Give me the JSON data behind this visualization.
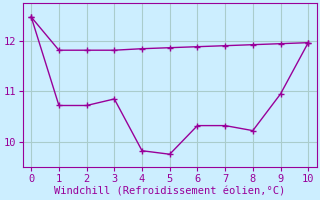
{
  "xlabel": "Windchill (Refroidissement éolien,°C)",
  "x": [
    0,
    1,
    2,
    3,
    4,
    5,
    6,
    7,
    8,
    9,
    10
  ],
  "line1_y": [
    12.48,
    11.82,
    11.82,
    11.82,
    11.85,
    11.87,
    11.89,
    11.91,
    11.93,
    11.95,
    11.97
  ],
  "line2_y": [
    12.48,
    10.72,
    10.72,
    10.85,
    9.82,
    9.75,
    10.32,
    10.32,
    10.22,
    10.95,
    11.97
  ],
  "line_color": "#990099",
  "bg_color": "#cceeff",
  "grid_color": "#aacccc",
  "ylim": [
    9.5,
    12.75
  ],
  "xlim": [
    -0.3,
    10.3
  ],
  "yticks": [
    10,
    11,
    12
  ],
  "xticks": [
    0,
    1,
    2,
    3,
    4,
    5,
    6,
    7,
    8,
    9,
    10
  ],
  "marker": "+",
  "markersize": 5,
  "linewidth": 1.0,
  "font_color": "#990099",
  "font_size": 7.5,
  "tick_font_size": 7.5
}
